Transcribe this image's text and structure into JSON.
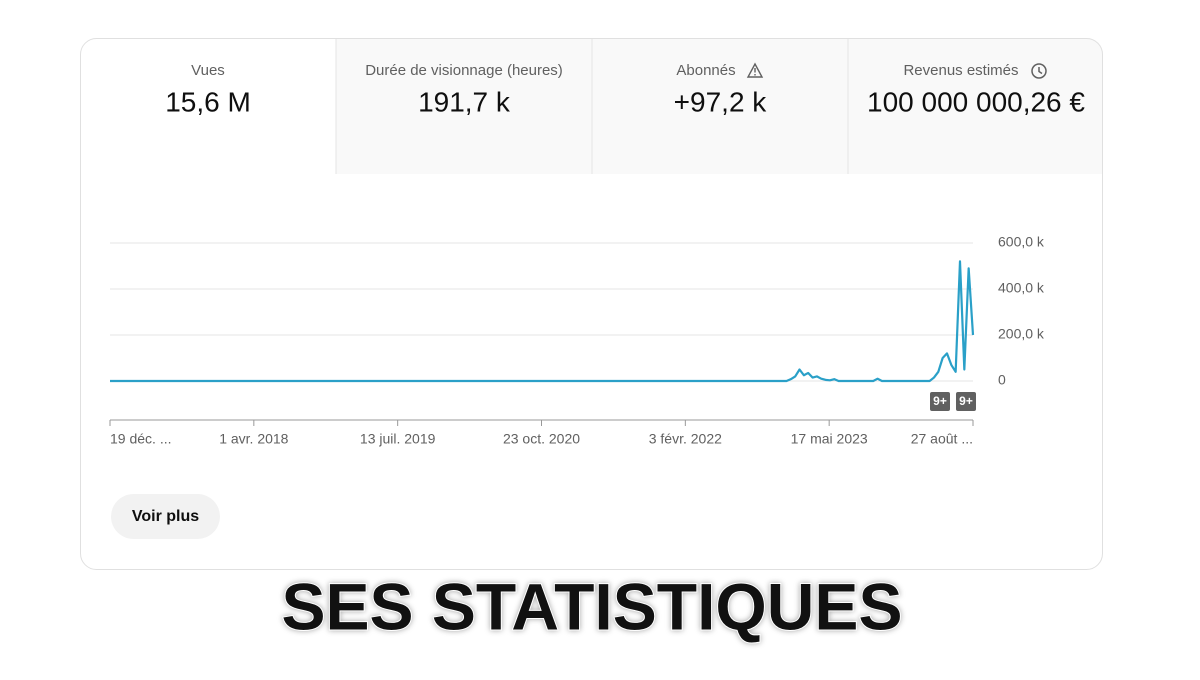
{
  "tabs": [
    {
      "label": "Vues",
      "value": "15,6 M"
    },
    {
      "label": "Durée de visionnage (heures)",
      "value": "191,7 k"
    },
    {
      "label": "Abonnés",
      "value": "+97,2 k"
    },
    {
      "label": "Revenus estimés",
      "value": "100 000 000,26 €"
    }
  ],
  "chart_data": {
    "type": "line",
    "color": "#2aa0c8",
    "grid": true,
    "xtick_labels": [
      "19 déc. ...",
      "1 avr. 2018",
      "13 juil. 2019",
      "23 oct. 2020",
      "3 févr. 2022",
      "17 mai 2023",
      "27 août ..."
    ],
    "ylim": [
      0,
      600000
    ],
    "yticks": [
      0,
      {
        "value": 200000,
        "label": "200,0 k"
      },
      {
        "value": 400000,
        "label": "400,0 k"
      },
      {
        "value": 600000,
        "label": "600,0 k"
      }
    ],
    "values": [
      0,
      0,
      0,
      0,
      0,
      0,
      0,
      0,
      0,
      0,
      0,
      0,
      0,
      0,
      0,
      0,
      0,
      0,
      0,
      0,
      0,
      0,
      0,
      0,
      0,
      0,
      0,
      0,
      0,
      0,
      0,
      0,
      0,
      0,
      0,
      0,
      0,
      0,
      0,
      0,
      0,
      0,
      0,
      0,
      0,
      0,
      0,
      0,
      0,
      0,
      0,
      0,
      0,
      0,
      0,
      0,
      0,
      0,
      0,
      0,
      0,
      0,
      0,
      0,
      0,
      0,
      0,
      0,
      0,
      0,
      0,
      0,
      0,
      0,
      0,
      0,
      0,
      0,
      0,
      0,
      0,
      0,
      0,
      0,
      0,
      0,
      0,
      0,
      0,
      0,
      0,
      0,
      0,
      0,
      0,
      0,
      0,
      0,
      0,
      0,
      0,
      0,
      0,
      0,
      0,
      0,
      0,
      0,
      0,
      0,
      0,
      0,
      0,
      0,
      0,
      0,
      0,
      0,
      0,
      0,
      0,
      0,
      0,
      0,
      0,
      0,
      0,
      0,
      0,
      0,
      0,
      0,
      0,
      0,
      0,
      0,
      0,
      0,
      0,
      0,
      0,
      0,
      0,
      0,
      0,
      0,
      0,
      0,
      0,
      0,
      0,
      0,
      0,
      0,
      0,
      0,
      0,
      8000,
      20000,
      50000,
      25000,
      35000,
      15000,
      20000,
      10000,
      5000,
      3000,
      8000,
      0,
      0,
      0,
      0,
      0,
      0,
      0,
      0,
      0,
      10000,
      0,
      0,
      0,
      0,
      0,
      0,
      0,
      0,
      0,
      0,
      0,
      0,
      15000,
      40000,
      100000,
      120000,
      70000,
      40000,
      520000,
      50000,
      490000,
      200000
    ],
    "annotations": [
      "9+",
      "9+"
    ]
  },
  "button": "Voir plus",
  "caption": "SES STATISTIQUES"
}
